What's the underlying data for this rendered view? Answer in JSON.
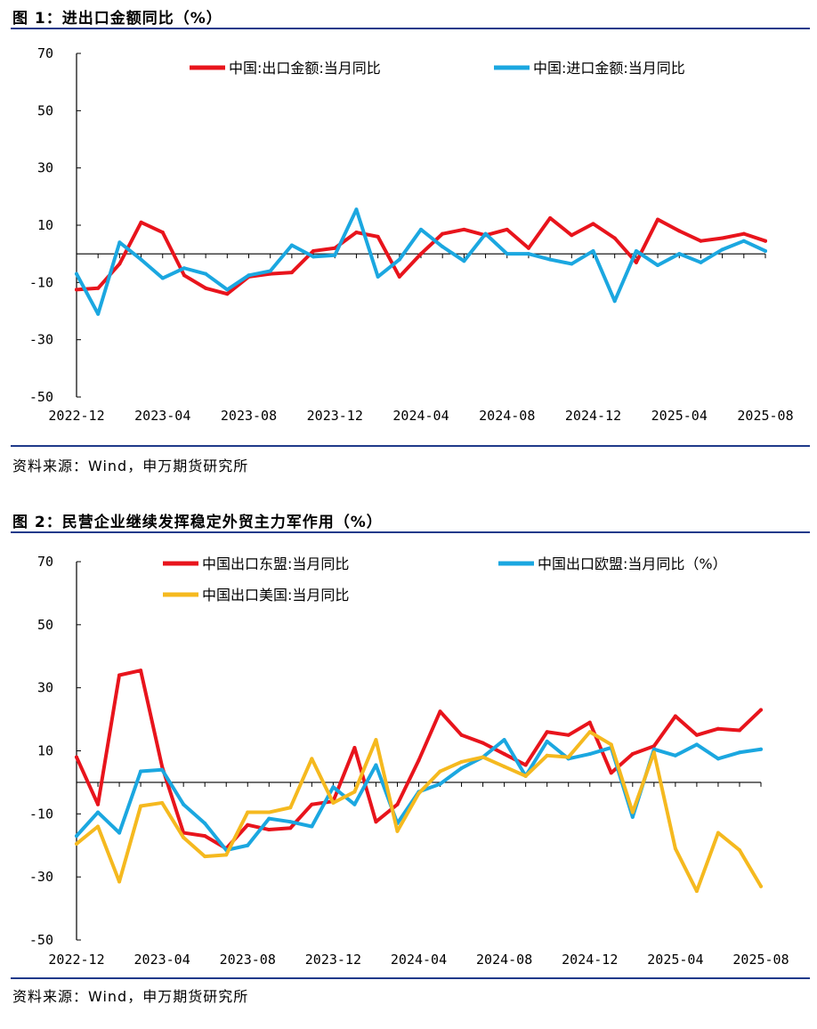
{
  "chart_data": [
    {
      "type": "line",
      "title": "图 1：进出口金额同比（%）",
      "source": "资料来源：Wind，申万期货研究所",
      "ylim": [
        -50,
        70
      ],
      "yticks": [
        "70",
        "50",
        "30",
        "10",
        "-10",
        "-30",
        "-50"
      ],
      "x_tick_labels": [
        "2022-12",
        "2023-04",
        "2023-08",
        "2023-12",
        "2024-04",
        "2024-08",
        "2024-12",
        "2025-04",
        "2025-08"
      ],
      "legend": "top",
      "series": [
        {
          "name": "中国:出口金额:当月同比",
          "color": "#e8141c",
          "values": [
            -12.5,
            -12,
            -3.5,
            11,
            7.5,
            -7.5,
            -12,
            -14,
            -8,
            -7,
            -6.5,
            1,
            2,
            7.5,
            6,
            -8,
            0,
            7,
            8.5,
            6.5,
            8.5,
            2,
            12.5,
            6.5,
            10.5,
            5.5,
            -3,
            12,
            8,
            4.5,
            5.5,
            7,
            4.5
          ]
        },
        {
          "name": "中国:进口金额:当月同比",
          "color": "#1ba7e0",
          "values": [
            -7,
            -21,
            4,
            -2,
            -8.5,
            -5,
            -7,
            -12.5,
            -7.5,
            -6,
            3,
            -1,
            -0.5,
            15.5,
            -8,
            -2,
            8.5,
            2.5,
            -2.5,
            7,
            0,
            0,
            -2,
            -3.5,
            1,
            -16.5,
            1,
            -4,
            0,
            -3,
            1.5,
            4.5,
            1
          ]
        }
      ]
    },
    {
      "type": "line",
      "title": "图 2：民营企业继续发挥稳定外贸主力军作用（%）",
      "source": "资料来源：Wind，申万期货研究所",
      "ylim": [
        -50,
        70
      ],
      "yticks": [
        "70",
        "50",
        "30",
        "10",
        "-10",
        "-30",
        "-50"
      ],
      "x_tick_labels": [
        "2022-12",
        "2023-04",
        "2023-08",
        "2023-12",
        "2024-04",
        "2024-08",
        "2024-12",
        "2025-04",
        "2025-08"
      ],
      "legend": "top",
      "series": [
        {
          "name": "中国出口东盟:当月同比",
          "color": "#e8141c",
          "values": [
            8,
            -7,
            34,
            35.5,
            5,
            -16,
            -17,
            -21,
            -13.5,
            -15,
            -14.5,
            -7,
            -6,
            11,
            -12.5,
            -7,
            7,
            22.5,
            15,
            12.5,
            9,
            5.5,
            16,
            15,
            19,
            3,
            9,
            11.5,
            21,
            15,
            17,
            16.5,
            23
          ]
        },
        {
          "name": "中国出口欧盟:当月同比（%）",
          "color": "#1ba7e0",
          "values": [
            -17,
            -9.5,
            -16,
            3.5,
            4,
            -7,
            -13,
            -21.5,
            -20,
            -11.5,
            -12.5,
            -14,
            -1.5,
            -7,
            5.5,
            -13,
            -3,
            -0.5,
            4.5,
            8,
            13.5,
            2,
            13,
            7.5,
            9,
            11,
            -11,
            10.5,
            8.5,
            12,
            7.5,
            9.5,
            10.5
          ]
        },
        {
          "name": "中国出口美国:当月同比",
          "color": "#f5b91f",
          "values": [
            -19.5,
            -14,
            -31.5,
            -7.5,
            -6.5,
            -17.5,
            -23.5,
            -23,
            -9.5,
            -9.5,
            -8,
            7.5,
            -6.5,
            -3,
            13.5,
            -15.5,
            -3.5,
            3.5,
            6.5,
            8,
            5,
            2,
            8.5,
            8,
            16,
            12,
            -9.5,
            9.5,
            -21,
            -34.5,
            -16,
            -21.5,
            -33
          ]
        }
      ]
    }
  ]
}
